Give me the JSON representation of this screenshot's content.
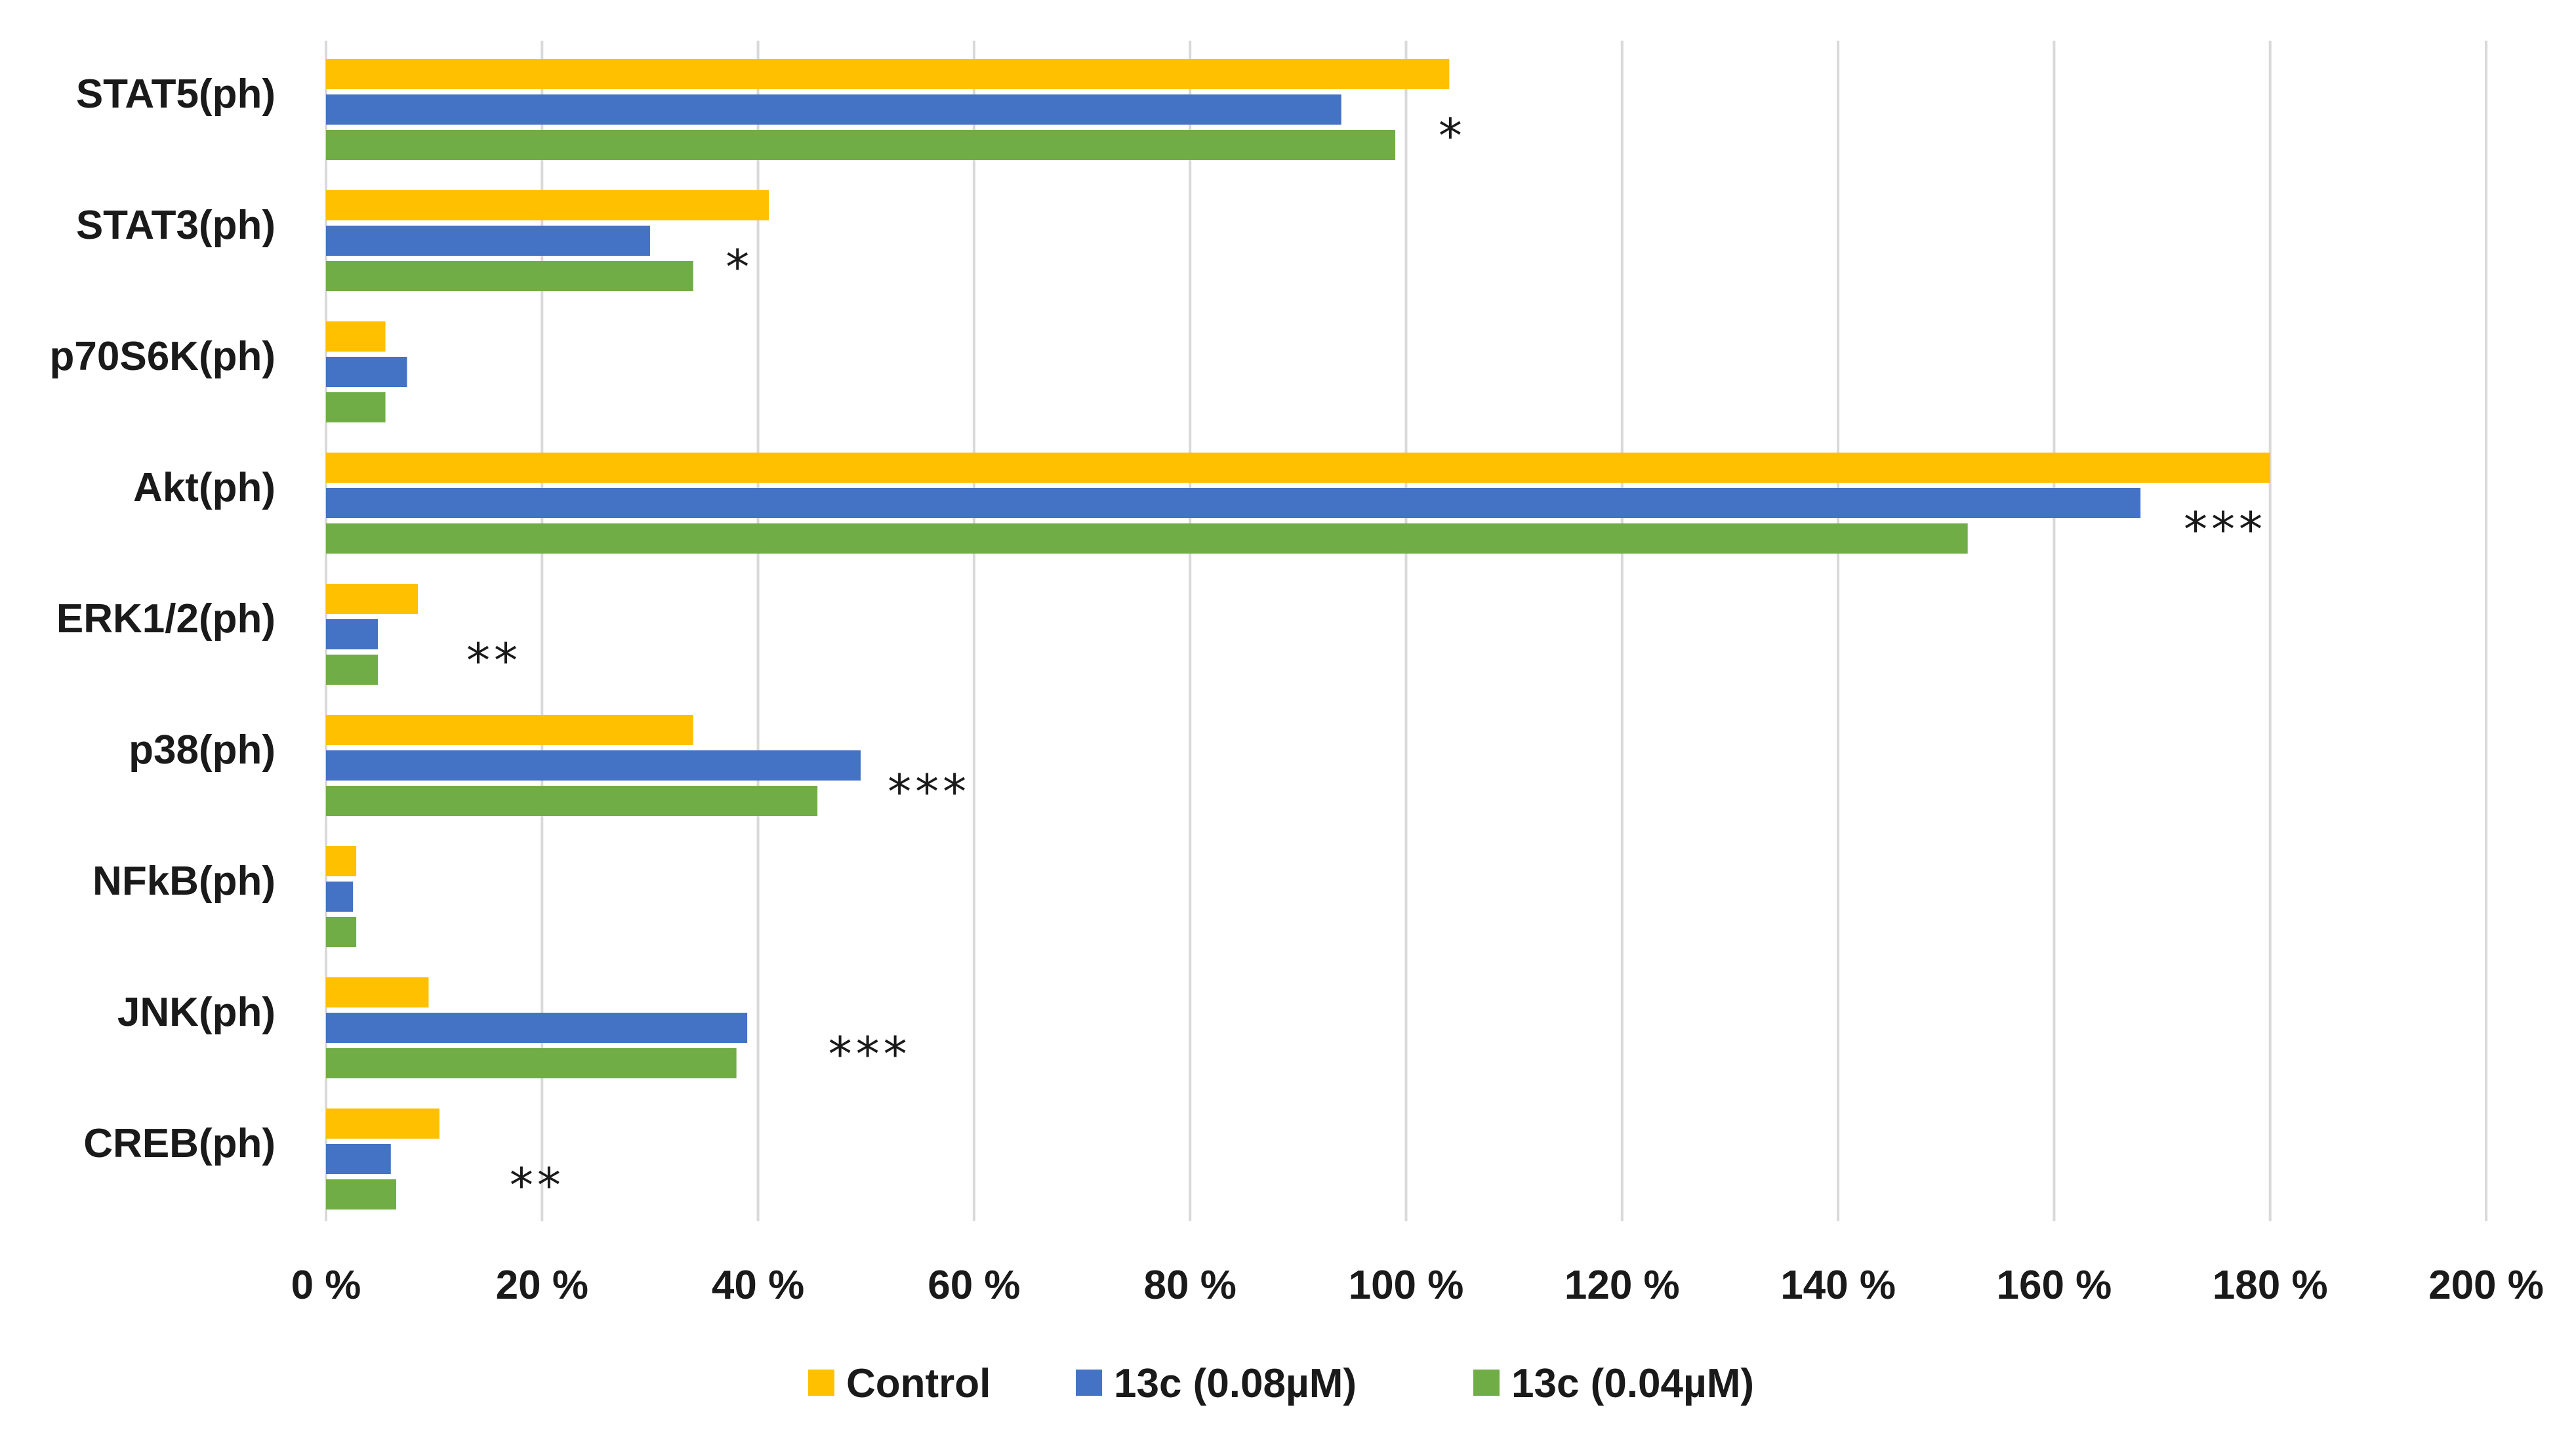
{
  "chart_data": {
    "type": "bar",
    "orientation": "horizontal",
    "categories": [
      "STAT5(ph)",
      "STAT3(ph)",
      "p70S6K(ph)",
      "Akt(ph)",
      "ERK1/2(ph)",
      "p38(ph)",
      "NFkB(ph)",
      "JNK(ph)",
      "CREB(ph)"
    ],
    "series": [
      {
        "name": "Control",
        "color": "#ffc000",
        "values": [
          104,
          41,
          5.5,
          180,
          8.5,
          34,
          2.8,
          9.5,
          10.5
        ]
      },
      {
        "name": "13c (0.08µM)",
        "color": "#4472c4",
        "values": [
          94,
          30,
          7.5,
          168,
          4.8,
          49.5,
          2.5,
          39,
          6
        ]
      },
      {
        "name": "13c (0.04µM)",
        "color": "#70ad47",
        "values": [
          99,
          34,
          5.5,
          152,
          4.8,
          45.5,
          2.8,
          38,
          6.5
        ]
      }
    ],
    "significance": [
      {
        "category": "STAT5(ph)",
        "label": "*",
        "x": 103
      },
      {
        "category": "STAT3(ph)",
        "label": "*",
        "x": 37
      },
      {
        "category": "Akt(ph)",
        "label": "***",
        "x": 172
      },
      {
        "category": "ERK1/2(ph)",
        "label": "**",
        "x": 13
      },
      {
        "category": "p38(ph)",
        "label": "***",
        "x": 52
      },
      {
        "category": "JNK(ph)",
        "label": "***",
        "x": 46.5
      },
      {
        "category": "CREB(ph)",
        "label": "**",
        "x": 17
      }
    ],
    "xlim": [
      0,
      200
    ],
    "xticks": [
      0,
      20,
      40,
      60,
      80,
      100,
      120,
      140,
      160,
      180,
      200
    ],
    "xtick_labels": [
      "0 %",
      "20 %",
      "40 %",
      "60 %",
      "80 %",
      "100 %",
      "120 %",
      "140 %",
      "160 %",
      "180 %",
      "200 %"
    ],
    "title": "",
    "xlabel": "",
    "ylabel": "",
    "grid": "vertical",
    "legend_position": "bottom"
  }
}
